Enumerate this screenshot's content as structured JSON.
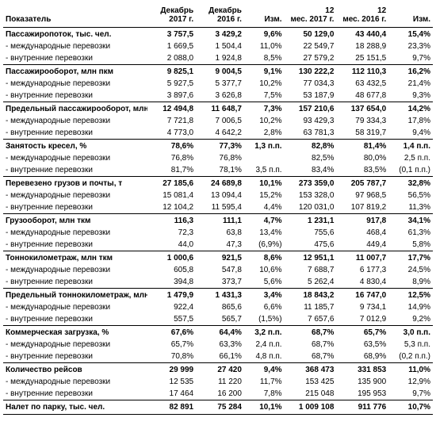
{
  "header": {
    "indicator": "Показатель",
    "dec2017": "Декабрь 2017 г.",
    "dec2016": "Декабрь 2016 г.",
    "chg1": "Изм.",
    "m12_2017": "12 мес. 2017 г.",
    "m12_2016": "12 мес. 2016 г.",
    "chg2": "Изм."
  },
  "sections": [
    {
      "title": "Пассажиропоток, тыс. чел.",
      "vals": [
        "3 757,5",
        "3 429,2",
        "9,6%",
        "50 129,0",
        "43 440,4",
        "15,4%"
      ],
      "rows": [
        {
          "label": "- международные перевозки",
          "vals": [
            "1 669,5",
            "1 504,4",
            "11,0%",
            "22 549,7",
            "18 288,9",
            "23,3%"
          ]
        },
        {
          "label": "- внутренние перевозки",
          "vals": [
            "2 088,0",
            "1 924,8",
            "8,5%",
            "27 579,2",
            "25 151,5",
            "9,7%"
          ]
        }
      ]
    },
    {
      "title": "Пассажирооборот, млн пкм",
      "vals": [
        "9 825,1",
        "9 004,5",
        "9,1%",
        "130 222,2",
        "112 110,3",
        "16,2%"
      ],
      "rows": [
        {
          "label": "- международные перевозки",
          "vals": [
            "5 927,5",
            "5 377,7",
            "10,2%",
            "77 034,3",
            "63 432,5",
            "21,4%"
          ]
        },
        {
          "label": "- внутренние перевозки",
          "vals": [
            "3 897,6",
            "3 626,8",
            "7,5%",
            "53 187,9",
            "48 677,8",
            "9,3%"
          ]
        }
      ]
    },
    {
      "title": "Предельный пассажирооборот, млн ккм",
      "vals": [
        "12 494,8",
        "11 648,7",
        "7,3%",
        "157 210,6",
        "137 654,0",
        "14,2%"
      ],
      "rows": [
        {
          "label": "- международные перевозки",
          "vals": [
            "7 721,8",
            "7 006,5",
            "10,2%",
            "93 429,3",
            "79 334,3",
            "17,8%"
          ]
        },
        {
          "label": "- внутренние перевозки",
          "vals": [
            "4 773,0",
            "4 642,2",
            "2,8%",
            "63 781,3",
            "58 319,7",
            "9,4%"
          ]
        }
      ]
    },
    {
      "title": "Занятость кресел, %",
      "vals": [
        "78,6%",
        "77,3%",
        "1,3 п.п.",
        "82,8%",
        "81,4%",
        "1,4 п.п."
      ],
      "rows": [
        {
          "label": "- международные перевозки",
          "vals": [
            "76,8%",
            "76,8%",
            "",
            "82,5%",
            "80,0%",
            "2,5 п.п."
          ]
        },
        {
          "label": "- внутренние перевозки",
          "vals": [
            "81,7%",
            "78,1%",
            "3,5 п.п.",
            "83,4%",
            "83,5%",
            "(0,1 п.п.)"
          ]
        }
      ]
    },
    {
      "title": "Перевезено грузов и почты, т",
      "vals": [
        "27 185,6",
        "24 689,8",
        "10,1%",
        "273 359,0",
        "205 787,7",
        "32,8%"
      ],
      "rows": [
        {
          "label": "- международные перевозки",
          "vals": [
            "15 081,4",
            "13 094,4",
            "15,2%",
            "153 328,0",
            "97 968,5",
            "56,5%"
          ]
        },
        {
          "label": "- внутренние перевозки",
          "vals": [
            "12 104,2",
            "11 595,4",
            "4,4%",
            "120 031,0",
            "107 819,2",
            "11,3%"
          ]
        }
      ]
    },
    {
      "title": "Грузооборот, млн ткм",
      "vals": [
        "116,3",
        "111,1",
        "4,7%",
        "1 231,1",
        "917,8",
        "34,1%"
      ],
      "rows": [
        {
          "label": "- международные перевозки",
          "vals": [
            "72,3",
            "63,8",
            "13,4%",
            "755,6",
            "468,4",
            "61,3%"
          ]
        },
        {
          "label": "- внутренние перевозки",
          "vals": [
            "44,0",
            "47,3",
            "(6,9%)",
            "475,6",
            "449,4",
            "5,8%"
          ]
        }
      ]
    },
    {
      "title": "Тоннокилометраж, млн ткм",
      "vals": [
        "1 000,6",
        "921,5",
        "8,6%",
        "12 951,1",
        "11 007,7",
        "17,7%"
      ],
      "rows": [
        {
          "label": "- международные перевозки",
          "vals": [
            "605,8",
            "547,8",
            "10,6%",
            "7 688,7",
            "6 177,3",
            "24,5%"
          ]
        },
        {
          "label": "- внутренние перевозки",
          "vals": [
            "394,8",
            "373,7",
            "5,6%",
            "5 262,4",
            "4 830,4",
            "8,9%"
          ]
        }
      ]
    },
    {
      "title": "Предельный тоннокилометраж, млн ткм",
      "vals": [
        "1 479,9",
        "1 431,3",
        "3,4%",
        "18 843,2",
        "16 747,0",
        "12,5%"
      ],
      "rows": [
        {
          "label": "- международные перевозки",
          "vals": [
            "922,4",
            "865,6",
            "6,6%",
            "11 185,7",
            "9 734,1",
            "14,9%"
          ]
        },
        {
          "label": "- внутренние перевозки",
          "vals": [
            "557,5",
            "565,7",
            "(1,5%)",
            "7 657,6",
            "7 012,9",
            "9,2%"
          ]
        }
      ]
    },
    {
      "title": "Коммерческая загрузка, %",
      "vals": [
        "67,6%",
        "64,4%",
        "3,2 п.п.",
        "68,7%",
        "65,7%",
        "3,0 п.п."
      ],
      "rows": [
        {
          "label": "- международные перевозки",
          "vals": [
            "65,7%",
            "63,3%",
            "2,4 п.п.",
            "68,7%",
            "63,5%",
            "5,3 п.п."
          ]
        },
        {
          "label": "- внутренние перевозки",
          "vals": [
            "70,8%",
            "66,1%",
            "4,8 п.п.",
            "68,7%",
            "68,9%",
            "(0,2 п.п.)"
          ]
        }
      ]
    },
    {
      "title": "Количество рейсов",
      "vals": [
        "29 999",
        "27 420",
        "9,4%",
        "368 473",
        "331 853",
        "11,0%"
      ],
      "rows": [
        {
          "label": "- международные перевозки",
          "vals": [
            "12 535",
            "11 220",
            "11,7%",
            "153 425",
            "135 900",
            "12,9%"
          ]
        },
        {
          "label": "- внутренние перевозки",
          "vals": [
            "17 464",
            "16 200",
            "7,8%",
            "215 048",
            "195 953",
            "9,7%"
          ]
        }
      ]
    }
  ],
  "total": {
    "label": "Налет по парку, тыс. чел.",
    "vals": [
      "82 891",
      "75 284",
      "10,1%",
      "1 009 108",
      "911 776",
      "10,7%"
    ]
  }
}
